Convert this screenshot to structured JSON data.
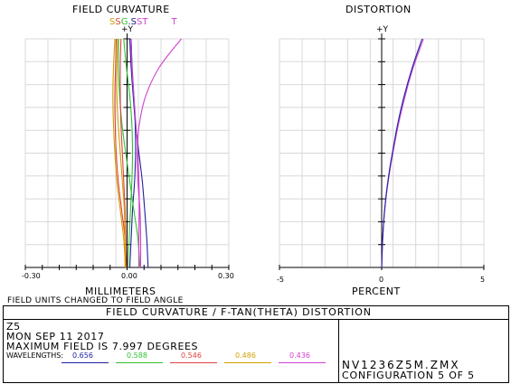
{
  "chart_data": [
    {
      "type": "line",
      "title": "FIELD CURVATURE",
      "y_axis_label": "+Y",
      "xlabel": "MILLIMETERS",
      "xlim": [
        -0.3,
        0.3
      ],
      "x_tick_labels": [
        "-0.30",
        "0.30"
      ],
      "ylim": [
        0,
        7.997
      ],
      "curve_labels": [
        {
          "text": "S",
          "color": "#d0a000"
        },
        {
          "text": "S",
          "color": "#e04040"
        },
        {
          "text": "G",
          "color": "#30c030"
        },
        {
          "text": ".S",
          "color": "#202080"
        },
        {
          "text": "S",
          "color": "#d040d0"
        },
        {
          "text": "T",
          "color": "#d040d0"
        },
        {
          "text": "T",
          "color": "#d040d0"
        }
      ],
      "series": [
        {
          "name": "0.656 S",
          "color": "#2020a0",
          "points": [
            [
              0.008,
              0
            ],
            [
              0.012,
              1
            ],
            [
              0.016,
              2
            ],
            [
              0.022,
              3
            ],
            [
              0.025,
              4
            ],
            [
              0.024,
              5
            ],
            [
              0.02,
              6
            ],
            [
              0.015,
              7
            ],
            [
              0.012,
              7.997
            ]
          ]
        },
        {
          "name": "0.656 T",
          "color": "#2020a0",
          "points": [
            [
              0.062,
              0
            ],
            [
              0.058,
              1
            ],
            [
              0.052,
              2
            ],
            [
              0.045,
              3
            ],
            [
              0.035,
              4
            ],
            [
              0.025,
              5
            ],
            [
              0.018,
              6
            ],
            [
              0.012,
              7
            ],
            [
              0.008,
              7.997
            ]
          ]
        },
        {
          "name": "0.588 S",
          "color": "#30c030",
          "points": [
            [
              0.003,
              0
            ],
            [
              0.006,
              1
            ],
            [
              0.01,
              2
            ],
            [
              0.014,
              3
            ],
            [
              0.016,
              4
            ],
            [
              0.014,
              5
            ],
            [
              0.008,
              6
            ],
            [
              -0.002,
              7
            ],
            [
              -0.01,
              7.997
            ]
          ]
        },
        {
          "name": "0.588 T",
          "color": "#30c030",
          "points": [
            [
              0.038,
              0
            ],
            [
              0.032,
              1
            ],
            [
              0.02,
              2
            ],
            [
              0.008,
              3
            ],
            [
              -0.004,
              4
            ],
            [
              -0.015,
              5
            ],
            [
              -0.022,
              6
            ],
            [
              -0.025,
              7
            ],
            [
              -0.025,
              7.997
            ]
          ]
        },
        {
          "name": "0.546 S",
          "color": "#e04040",
          "points": [
            [
              -0.004,
              0
            ],
            [
              -0.004,
              1
            ],
            [
              -0.006,
              2
            ],
            [
              -0.01,
              3
            ],
            [
              -0.014,
              4
            ],
            [
              -0.018,
              5
            ],
            [
              -0.02,
              6
            ],
            [
              -0.02,
              7
            ],
            [
              -0.018,
              7.997
            ]
          ]
        },
        {
          "name": "0.546 T",
          "color": "#e04040",
          "points": [
            [
              -0.002,
              0
            ],
            [
              -0.006,
              1
            ],
            [
              -0.016,
              2
            ],
            [
              -0.026,
              3
            ],
            [
              -0.032,
              4
            ],
            [
              -0.035,
              5
            ],
            [
              -0.036,
              6
            ],
            [
              -0.034,
              7
            ],
            [
              -0.032,
              7.997
            ]
          ]
        },
        {
          "name": "0.486 S",
          "color": "#d0a000",
          "points": [
            [
              -0.006,
              0
            ],
            [
              -0.006,
              1
            ],
            [
              -0.008,
              2
            ],
            [
              -0.014,
              3
            ],
            [
              -0.02,
              4
            ],
            [
              -0.026,
              5
            ],
            [
              -0.03,
              6
            ],
            [
              -0.03,
              7
            ],
            [
              -0.028,
              7.997
            ]
          ]
        },
        {
          "name": "0.486 T",
          "color": "#d0a000",
          "points": [
            [
              -0.005,
              0
            ],
            [
              -0.01,
              1
            ],
            [
              -0.02,
              2
            ],
            [
              -0.03,
              3
            ],
            [
              -0.036,
              4
            ],
            [
              -0.04,
              5
            ],
            [
              -0.042,
              6
            ],
            [
              -0.04,
              7
            ],
            [
              -0.036,
              7.997
            ]
          ]
        },
        {
          "name": "0.436 S",
          "color": "#d040d0",
          "points": [
            [
              0.035,
              0
            ],
            [
              0.035,
              1
            ],
            [
              0.036,
              2
            ],
            [
              0.035,
              3
            ],
            [
              0.032,
              4
            ],
            [
              0.026,
              5
            ],
            [
              0.02,
              6
            ],
            [
              0.014,
              7
            ],
            [
              0.012,
              7.997
            ]
          ]
        },
        {
          "name": "0.436 T",
          "color": "#d040d0",
          "points": [
            [
              0.04,
              0
            ],
            [
              0.04,
              1
            ],
            [
              0.038,
              2
            ],
            [
              0.032,
              3
            ],
            [
              0.03,
              4
            ],
            [
              0.036,
              5
            ],
            [
              0.055,
              6
            ],
            [
              0.095,
              7
            ],
            [
              0.16,
              7.997
            ]
          ]
        }
      ]
    },
    {
      "type": "line",
      "title": "DISTORTION",
      "y_axis_label": "+Y",
      "xlabel": "PERCENT",
      "xlim": [
        -5,
        5
      ],
      "x_tick_labels": [
        "-5",
        "0",
        "5"
      ],
      "ylim": [
        0,
        7.997
      ],
      "series": [
        {
          "name": "0.436",
          "color": "#d040d0",
          "points": [
            [
              0,
              0
            ],
            [
              0.05,
              1
            ],
            [
              0.15,
              2
            ],
            [
              0.32,
              3
            ],
            [
              0.55,
              4
            ],
            [
              0.82,
              5
            ],
            [
              1.15,
              6
            ],
            [
              1.55,
              7
            ],
            [
              2.05,
              7.997
            ]
          ]
        },
        {
          "name": "0.656",
          "color": "#2020a0",
          "points": [
            [
              0,
              0
            ],
            [
              0.05,
              1
            ],
            [
              0.14,
              2
            ],
            [
              0.3,
              3
            ],
            [
              0.52,
              4
            ],
            [
              0.78,
              5
            ],
            [
              1.1,
              6
            ],
            [
              1.5,
              7
            ],
            [
              1.98,
              7.997
            ]
          ]
        }
      ]
    }
  ],
  "footer": {
    "title": "FIELD CURVATURE / F-TAN(THETA) DISTORTION",
    "note": "FIELD UNITS CHANGED TO FIELD ANGLE",
    "line1": "Z5",
    "line2": "MON SEP 11 2017",
    "line3": "MAXIMUM FIELD IS 7.997 DEGREES",
    "wavelengths_label": "WAVELENGTHS:",
    "wavelengths": [
      {
        "value": "0.656",
        "color": "#2020a0"
      },
      {
        "value": "0.588",
        "color": "#30c030"
      },
      {
        "value": "0.546",
        "color": "#e04040"
      },
      {
        "value": "0.486",
        "color": "#d0a000"
      },
      {
        "value": "0.436",
        "color": "#d040d0"
      }
    ],
    "file": "NV1236Z5M.ZMX",
    "configuration": "CONFIGURATION 5 OF 5"
  }
}
